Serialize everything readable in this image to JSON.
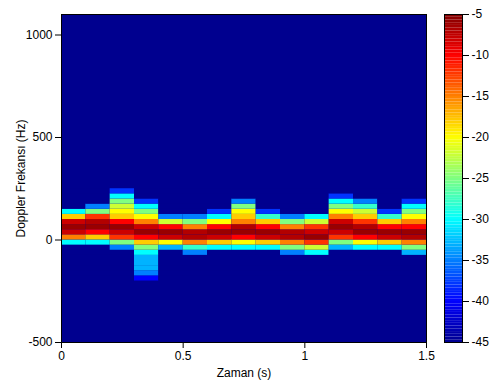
{
  "chart_data": {
    "type": "heatmap",
    "x_label": "Zaman (s)",
    "y_label": "Doppler Frekansı (Hz)",
    "xlim": [
      0,
      1.5
    ],
    "ylim": [
      -500,
      1100
    ],
    "xticks": [
      0,
      0.5,
      1,
      1.5
    ],
    "yticks": [
      -500,
      0,
      500,
      1000
    ],
    "color": "jet",
    "background": -45,
    "color_range": [
      -45,
      -5
    ],
    "color_ticks": [
      -5,
      -10,
      -15,
      -20,
      -25,
      -30,
      -35,
      -40,
      -45
    ],
    "cells": {
      "x_edges": [
        0,
        0.1,
        0.2,
        0.3,
        0.4,
        0.5,
        0.6,
        0.7,
        0.8,
        0.9,
        1.0,
        1.1,
        1.2,
        1.3,
        1.4,
        1.5
      ],
      "y_edges": [
        -200,
        -175,
        -150,
        -125,
        -100,
        -75,
        -50,
        -25,
        0,
        25,
        50,
        75,
        100,
        125,
        150,
        175,
        200,
        225,
        250
      ],
      "z": [
        [
          -45,
          -45,
          -45,
          -45,
          -45,
          -45,
          -45,
          -30,
          -15,
          -8,
          -6,
          -8,
          -18,
          -30,
          -45,
          -45,
          -45,
          -45
        ],
        [
          -45,
          -45,
          -45,
          -45,
          -45,
          -45,
          -45,
          -30,
          -18,
          -10,
          -6,
          -7,
          -12,
          -25,
          -35,
          -45,
          -45,
          -45
        ],
        [
          -45,
          -45,
          -45,
          -45,
          -45,
          -45,
          -35,
          -25,
          -12,
          -8,
          -6,
          -10,
          -18,
          -20,
          -22,
          -25,
          -30,
          -38
        ],
        [
          -40,
          -35,
          -33,
          -33,
          -33,
          -30,
          -25,
          -18,
          -10,
          -6,
          -8,
          -15,
          -20,
          -25,
          -30,
          -38,
          -45,
          -45
        ],
        [
          -45,
          -45,
          -45,
          -45,
          -45,
          -45,
          -33,
          -20,
          -8,
          -6,
          -10,
          -22,
          -35,
          -45,
          -45,
          -45,
          -45,
          -45
        ],
        [
          -45,
          -45,
          -45,
          -45,
          -45,
          -35,
          -28,
          -15,
          -7,
          -7,
          -15,
          -25,
          -35,
          -45,
          -45,
          -45,
          -45,
          -45
        ],
        [
          -45,
          -45,
          -45,
          -45,
          -45,
          -45,
          -30,
          -18,
          -8,
          -6,
          -10,
          -20,
          -30,
          -38,
          -45,
          -45,
          -45,
          -45
        ],
        [
          -45,
          -45,
          -45,
          -45,
          -45,
          -45,
          -30,
          -20,
          -10,
          -6,
          -7,
          -15,
          -18,
          -20,
          -25,
          -35,
          -45,
          -45
        ],
        [
          -45,
          -45,
          -45,
          -45,
          -45,
          -45,
          -30,
          -18,
          -8,
          -6,
          -10,
          -18,
          -28,
          -38,
          -45,
          -45,
          -45,
          -45
        ],
        [
          -45,
          -45,
          -45,
          -45,
          -45,
          -35,
          -25,
          -15,
          -7,
          -7,
          -15,
          -25,
          -35,
          -45,
          -45,
          -45,
          -45,
          -45
        ],
        [
          -45,
          -45,
          -45,
          -45,
          -45,
          -30,
          -22,
          -12,
          -6,
          -8,
          -12,
          -22,
          -30,
          -45,
          -45,
          -45,
          -45,
          -45
        ],
        [
          -45,
          -45,
          -45,
          -45,
          -45,
          -45,
          -33,
          -25,
          -12,
          -8,
          -6,
          -8,
          -15,
          -20,
          -25,
          -30,
          -38,
          -45
        ],
        [
          -45,
          -45,
          -45,
          -45,
          -45,
          -45,
          -30,
          -20,
          -10,
          -6,
          -7,
          -12,
          -18,
          -22,
          -28,
          -35,
          -45,
          -45
        ],
        [
          -45,
          -45,
          -45,
          -45,
          -45,
          -45,
          -30,
          -18,
          -8,
          -6,
          -10,
          -18,
          -28,
          -38,
          -45,
          -45,
          -45,
          -45
        ],
        [
          -45,
          -45,
          -45,
          -45,
          -45,
          -33,
          -25,
          -15,
          -7,
          -6,
          -10,
          -15,
          -20,
          -25,
          -30,
          -38,
          -45,
          -45
        ]
      ]
    }
  }
}
